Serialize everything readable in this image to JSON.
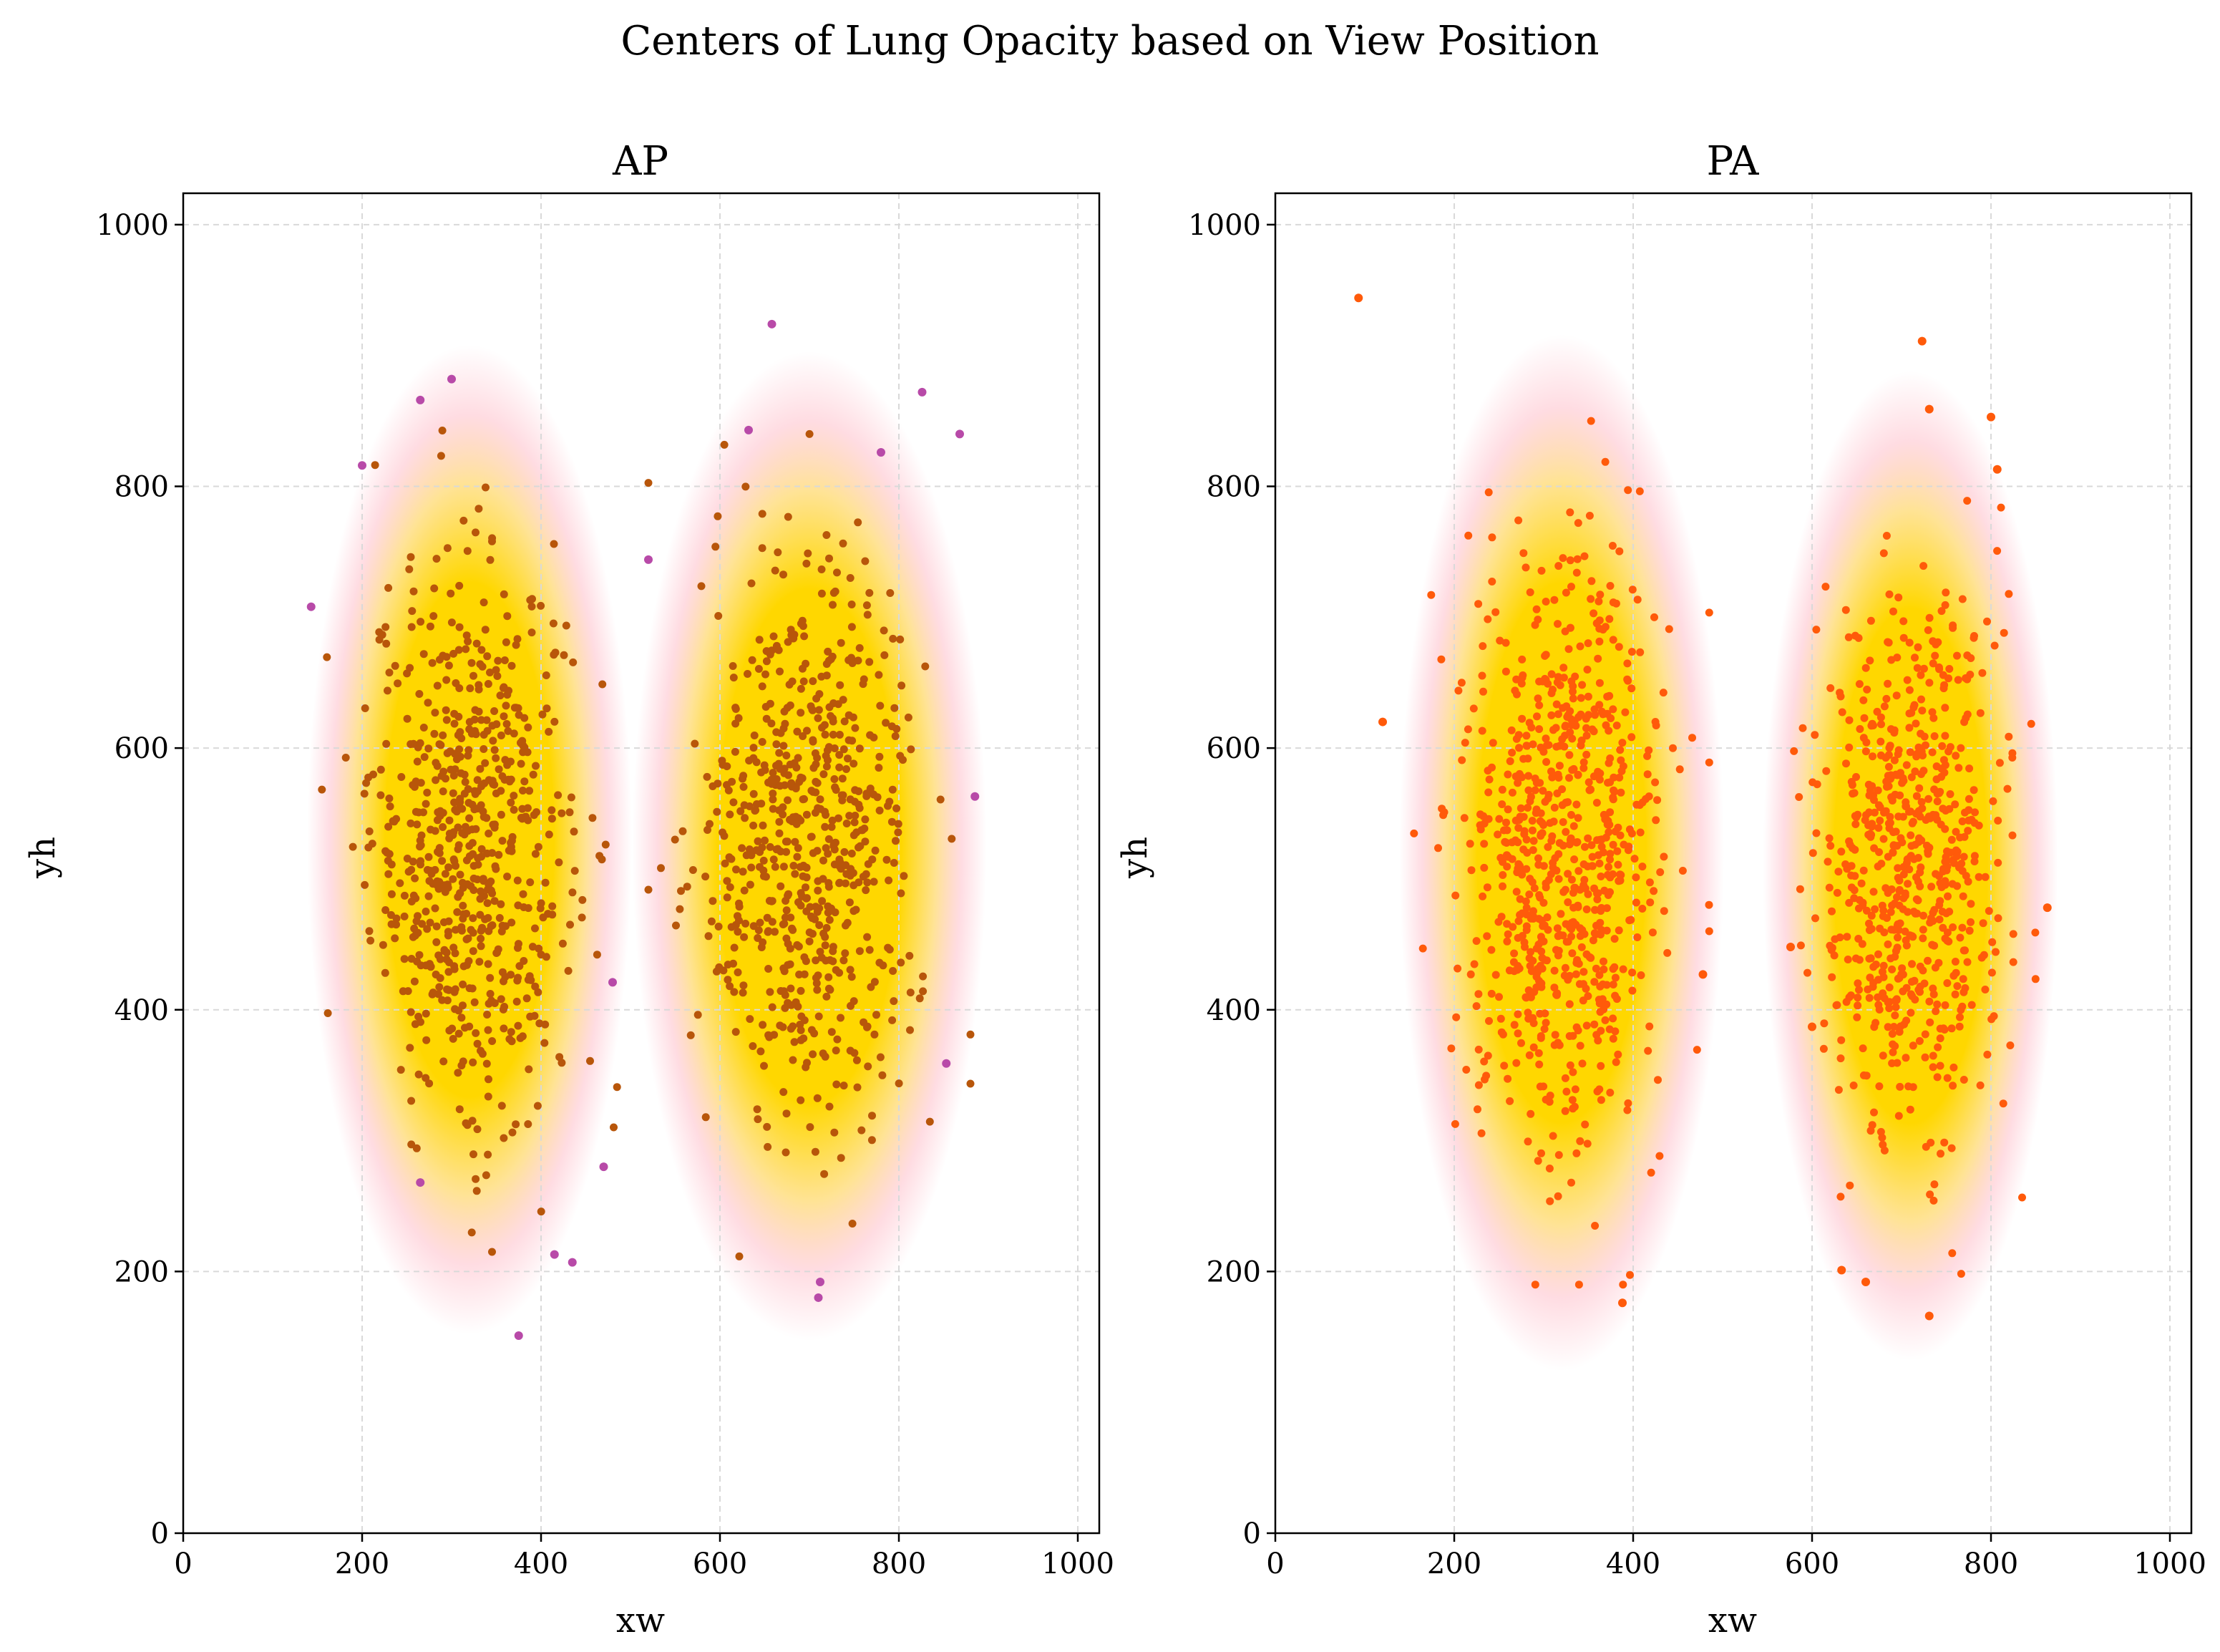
{
  "figure": {
    "title": "Centers of Lung Opacity based on View Position"
  },
  "colors": {
    "density_peak": "#ffd700",
    "density_edge": "#ffc0cb",
    "ap_points": "#b8560a",
    "ap_outlier_points": "#b84aa8",
    "pa_points": "#ff5a0a",
    "grid": "#d9d9d9"
  },
  "chart_data": [
    {
      "type": "scatter",
      "title": "AP",
      "xlabel": "xw",
      "ylabel": "yh",
      "xlim": [
        0,
        1024
      ],
      "ylim": [
        0,
        1024
      ],
      "xticks": [
        0,
        200,
        400,
        600,
        800,
        1000
      ],
      "yticks": [
        0,
        200,
        400,
        600,
        800,
        1000
      ],
      "grid": true,
      "background": "kde-density",
      "clusters": [
        {
          "center": [
            320,
            530
          ],
          "sd": [
            55,
            105
          ],
          "count": 650
        },
        {
          "center": [
            700,
            525
          ],
          "sd": [
            60,
            105
          ],
          "count": 650
        }
      ],
      "outliers": [
        [
          300,
          882
        ],
        [
          265,
          866
        ],
        [
          658,
          924
        ],
        [
          826,
          872
        ],
        [
          868,
          840
        ],
        [
          200,
          816
        ],
        [
          143,
          708
        ],
        [
          375,
          151
        ],
        [
          710,
          180
        ],
        [
          712,
          192
        ],
        [
          520,
          744
        ],
        [
          632,
          843
        ],
        [
          780,
          826
        ],
        [
          885,
          563
        ],
        [
          853,
          359
        ],
        [
          480,
          421
        ],
        [
          470,
          280
        ],
        [
          435,
          207
        ],
        [
          415,
          213
        ],
        [
          265,
          268
        ]
      ]
    },
    {
      "type": "scatter",
      "title": "PA",
      "xlabel": "xw",
      "ylabel": "yh",
      "xlim": [
        0,
        1024
      ],
      "ylim": [
        0,
        1024
      ],
      "xticks": [
        0,
        200,
        400,
        600,
        800,
        1000
      ],
      "yticks": [
        0,
        200,
        400,
        600,
        800,
        1000
      ],
      "grid": true,
      "background": "kde-density",
      "clusters": [
        {
          "center": [
            320,
            520
          ],
          "sd": [
            55,
            110
          ],
          "count": 750
        },
        {
          "center": [
            710,
            510
          ],
          "sd": [
            50,
            105
          ],
          "count": 650
        }
      ],
      "outliers": [
        [
          93,
          944
        ],
        [
          723,
          911
        ],
        [
          731,
          859
        ],
        [
          800,
          853
        ],
        [
          807,
          813
        ],
        [
          120,
          620
        ],
        [
          478,
          427
        ],
        [
          731,
          166
        ],
        [
          388,
          176
        ],
        [
          660,
          192
        ],
        [
          633,
          201
        ],
        [
          863,
          478
        ],
        [
          576,
          448
        ],
        [
          600,
          387
        ]
      ]
    }
  ]
}
